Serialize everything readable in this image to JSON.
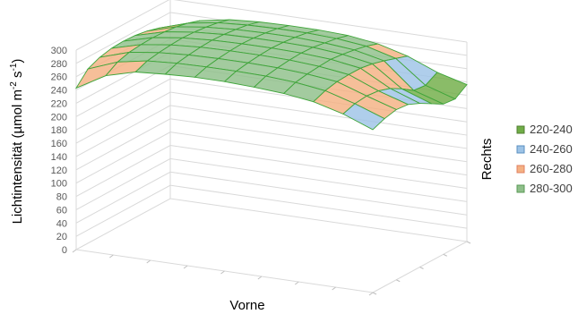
{
  "chart_data": {
    "type": "surface-3d",
    "ylabel": "Lichtintensität (µmol m",
    "ylabel_sup1": "-2",
    "ylabel_mid": " s",
    "ylabel_sup2": "-1",
    "ylabel_end": ")",
    "xlabel": "Vorne",
    "depth_label": "Rechts",
    "zlim": [
      0,
      300
    ],
    "z_ticks": [
      0,
      20,
      40,
      60,
      80,
      100,
      120,
      140,
      160,
      180,
      200,
      220,
      240,
      260,
      280,
      300
    ],
    "grid": true,
    "legend_position": "right",
    "legend": [
      {
        "label": "220-240",
        "color": "#70ad47",
        "stroke": "#507e32"
      },
      {
        "label": "240-260",
        "color": "#9dc3e6",
        "stroke": "#5a8fc0"
      },
      {
        "label": "260-280",
        "color": "#f4b183",
        "stroke": "#e08060"
      },
      {
        "label": "280-300",
        "color": "#8fbf8a",
        "stroke": "#5a9a55"
      }
    ],
    "grid_size": [
      11,
      9
    ],
    "surface_z": [
      [
        243,
        268,
        280,
        283,
        285,
        285,
        283,
        280,
        274,
        262,
        245
      ],
      [
        262,
        279,
        287,
        290,
        291,
        291,
        290,
        287,
        281,
        268,
        252
      ],
      [
        270,
        284,
        290,
        293,
        294,
        294,
        293,
        290,
        285,
        270,
        256
      ],
      [
        274,
        286,
        292,
        295,
        296,
        296,
        295,
        292,
        286,
        268,
        254
      ],
      [
        275,
        287,
        293,
        296,
        297,
        297,
        296,
        293,
        286,
        262,
        246
      ],
      [
        274,
        286,
        292,
        295,
        296,
        296,
        295,
        291,
        283,
        252,
        236
      ],
      [
        271,
        284,
        290,
        293,
        294,
        294,
        292,
        288,
        278,
        240,
        226
      ],
      [
        266,
        280,
        287,
        290,
        291,
        291,
        289,
        284,
        272,
        238,
        224
      ],
      [
        258,
        274,
        282,
        285,
        286,
        286,
        284,
        278,
        266,
        248,
        236
      ]
    ]
  }
}
